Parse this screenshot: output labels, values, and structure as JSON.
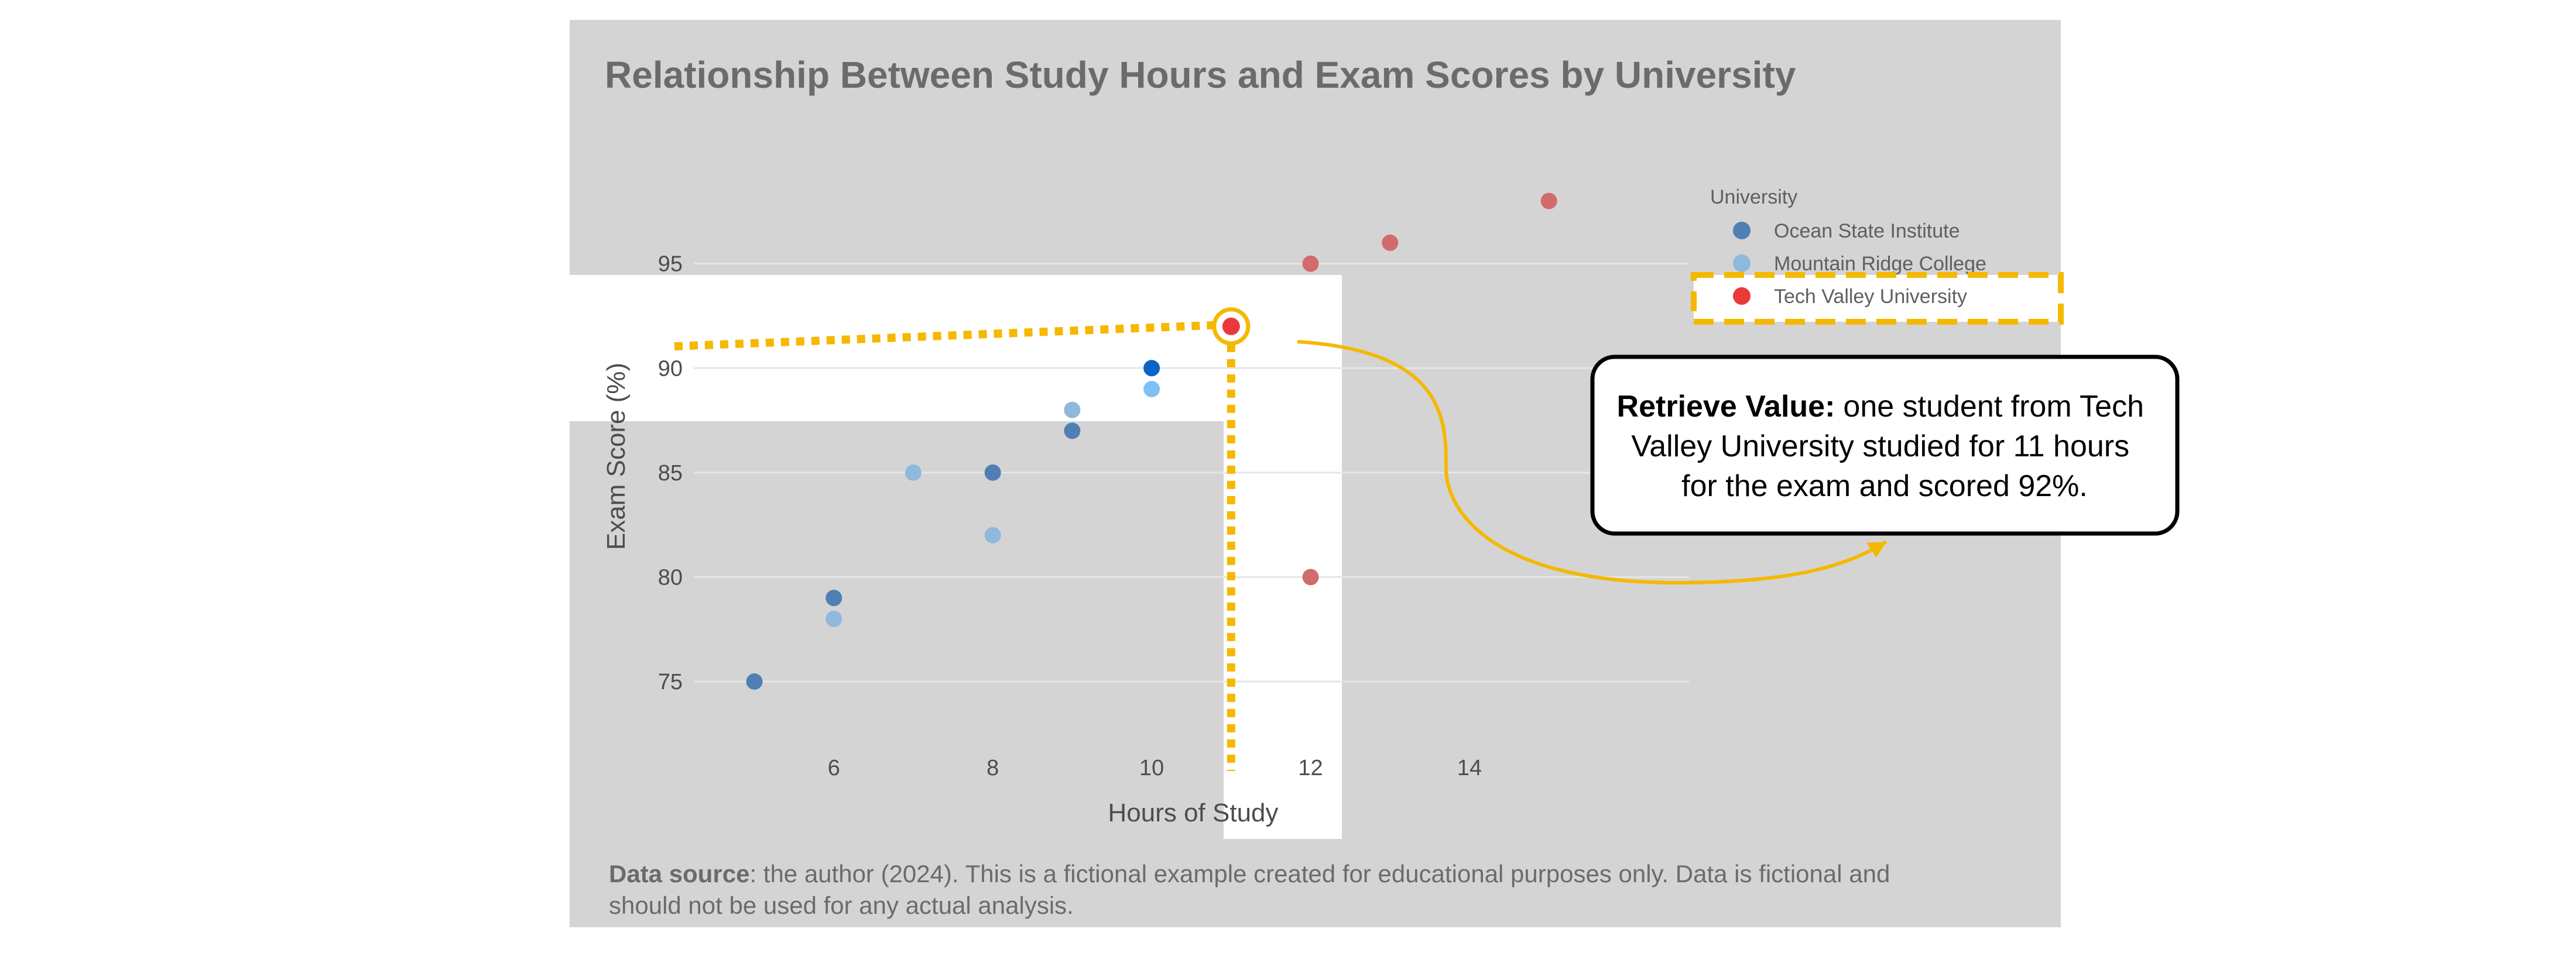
{
  "chart_data": {
    "type": "scatter",
    "title": "Relationship Between Study Hours and Exam Scores by University",
    "xlabel": "Hours of Study",
    "ylabel": "Exam Score (%)",
    "xlim": [
      4.2,
      16.8
    ],
    "ylim": [
      71.5,
      99.5
    ],
    "xticks": [
      6,
      8,
      10,
      12,
      14
    ],
    "yticks": [
      75,
      80,
      85,
      90,
      95
    ],
    "grid": true,
    "legend": {
      "title": "University",
      "placement": "top-right"
    },
    "series": [
      {
        "name": "Ocean State Institute",
        "color": "#4f7fb5",
        "points": [
          [
            5,
            75
          ],
          [
            6,
            79
          ],
          [
            8,
            85
          ],
          [
            9,
            87
          ],
          [
            10,
            90
          ]
        ]
      },
      {
        "name": "Mountain Ridge College",
        "color": "#8fb8dd",
        "points": [
          [
            6,
            78
          ],
          [
            7,
            85
          ],
          [
            8,
            82
          ],
          [
            9,
            88
          ],
          [
            10,
            89
          ]
        ]
      },
      {
        "name": "Tech Valley University",
        "color": "#d26b6b",
        "legend_color": "#e83a3a",
        "points": [
          [
            11,
            92
          ],
          [
            12,
            80
          ],
          [
            12,
            95
          ],
          [
            13,
            96
          ],
          [
            15,
            98
          ]
        ]
      }
    ],
    "highlight": {
      "series": "Tech Valley University",
      "x": 11,
      "y": 92,
      "color": "#e83a3a",
      "ring_color": "#f5b800"
    },
    "highlight_secondary": {
      "series": "Ocean State Institute",
      "x": 10,
      "y": 90,
      "color": "#0a63c9"
    },
    "highlight_secondary_2": {
      "series": "Mountain Ridge College",
      "x": 10,
      "y": 89,
      "color": "#7fc0f5"
    },
    "accent_color": "#f5b800"
  },
  "callout": {
    "bold": "Retrieve Value:",
    "lines": [
      "one student from Tech",
      "Valley University studied for 11 hours",
      "for the exam and scored 92%."
    ]
  },
  "caption": {
    "bold": "Data source",
    "line1": ": the author (2024). This is a fictional example created for educational purposes only. Data is fictional and",
    "line2": "should not be used for any actual analysis."
  }
}
